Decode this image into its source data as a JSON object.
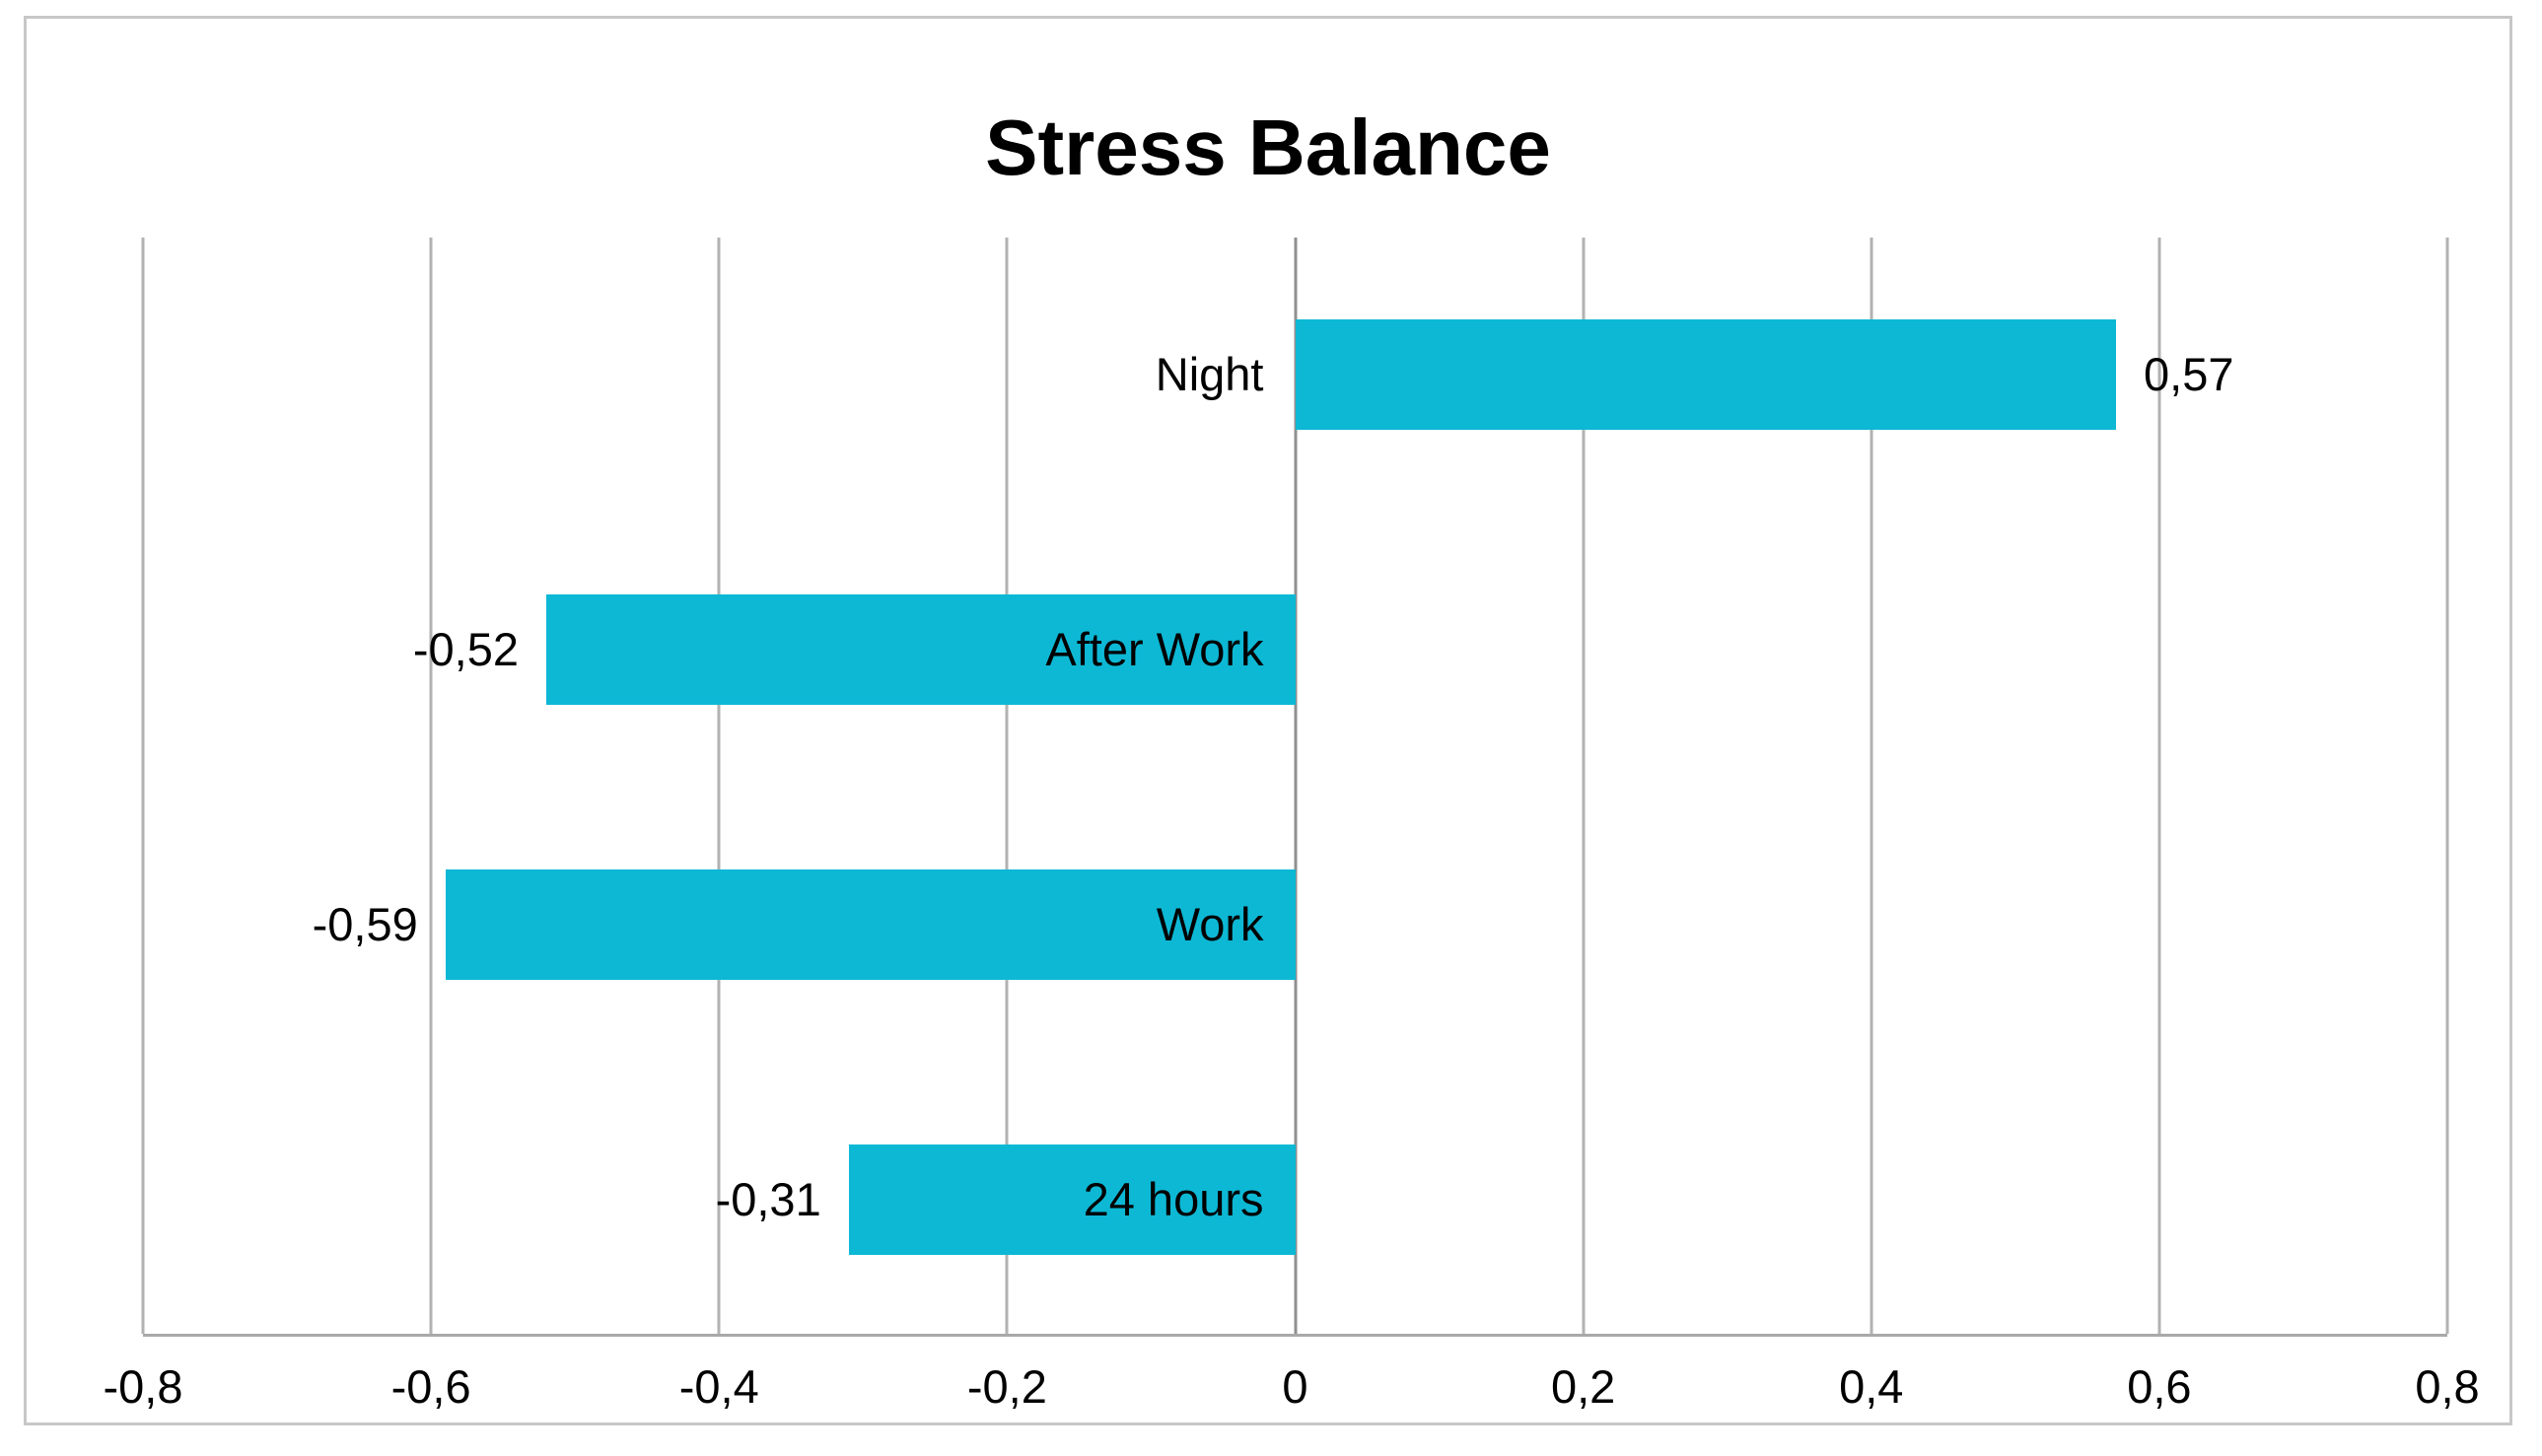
{
  "chart_data": {
    "type": "bar",
    "orientation": "horizontal",
    "title": "Stress Balance",
    "categories": [
      "Night",
      "After Work",
      "Work",
      "24 hours"
    ],
    "values": [
      0.57,
      -0.52,
      -0.59,
      -0.31
    ],
    "value_labels": [
      "0,57",
      "-0,52",
      "-0,59",
      "-0,31"
    ],
    "xlabel": "",
    "ylabel": "",
    "xlim": [
      -0.8,
      0.8
    ],
    "x_ticks": [
      -0.8,
      -0.6,
      -0.4,
      -0.2,
      0,
      0.2,
      0.4,
      0.6,
      0.8
    ],
    "x_tick_labels": [
      "-0,8",
      "-0,6",
      "-0,4",
      "-0,2",
      "0",
      "0,2",
      "0,4",
      "0,6",
      "0,8"
    ],
    "grid": "vertical gridlines on",
    "legend": "none",
    "decimal_separator": ","
  },
  "style": {
    "bar_color": "#0db8d5",
    "gridline_color": "#b2b2b2",
    "zero_line_color": "#8f8f8f",
    "axis_line_color": "#a9a9a9",
    "frame_border_color": "#c7c7c7",
    "text_color": "#000000",
    "background_color": "#ffffff"
  }
}
